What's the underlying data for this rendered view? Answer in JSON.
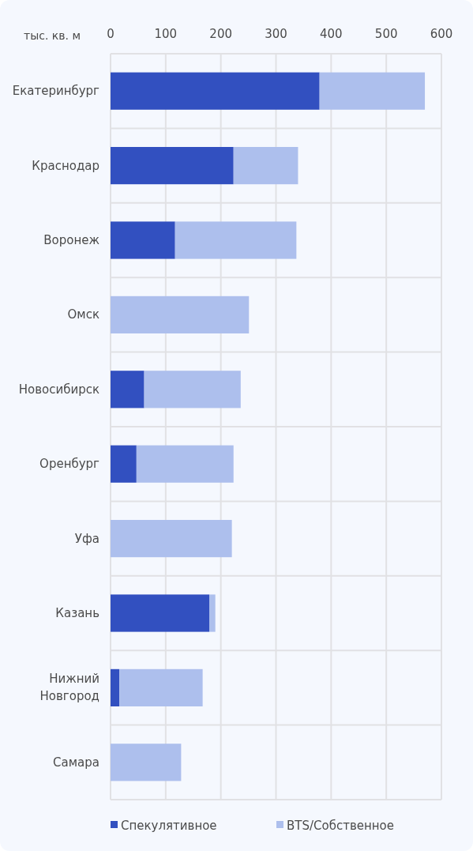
{
  "chart_data": {
    "type": "bar",
    "orientation": "horizontal",
    "stacked": true,
    "xlabel": "тыс. кв. м",
    "categories": [
      "Екатеринбург",
      "Краснодар",
      "Воронеж",
      "Омск",
      "Новосибирск",
      "Оренбург",
      "Уфа",
      "Казань",
      "Нижний Новгород",
      "Самара"
    ],
    "series": [
      {
        "name": "Спекулятивное",
        "color": "#3250c0",
        "values": [
          379,
          223,
          117,
          0,
          61,
          47,
          0,
          179,
          16,
          0
        ]
      },
      {
        "name": "BTS/Собственное",
        "color": "#adbfed",
        "values": [
          191,
          117,
          220,
          251,
          175,
          176,
          220,
          11,
          151,
          128
        ]
      }
    ],
    "xlim": [
      0,
      600
    ],
    "xticks": [
      0,
      100,
      200,
      300,
      400,
      500,
      600
    ],
    "grid": true,
    "legend": "bottom"
  }
}
